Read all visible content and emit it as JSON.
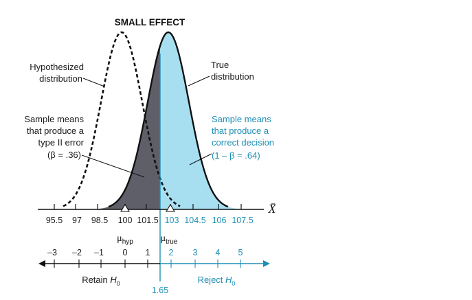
{
  "title": "SMALL EFFECT",
  "labels": {
    "hypothesized": [
      "Hypothesized",
      "distribution"
    ],
    "true_dist": [
      "True",
      "distribution"
    ],
    "type2": [
      "Sample means",
      "that produce a",
      "type II error",
      "(β = .36)"
    ],
    "correct": [
      "Sample means",
      "that produce a",
      "correct decision",
      "(1 – β = .64)"
    ]
  },
  "x_axis": {
    "symbol": "X̄",
    "ticks_black": [
      "95.5",
      "97",
      "98.5",
      "100",
      "101.5"
    ],
    "ticks_blue": [
      "103",
      "104.5",
      "106",
      "107.5"
    ]
  },
  "mu": {
    "hyp_base": "μ",
    "hyp_sub": "hyp",
    "true_base": "μ",
    "true_sub": "true"
  },
  "z_axis": {
    "ticks_black": [
      "–3",
      "–2",
      "–1",
      "0",
      "1"
    ],
    "ticks_blue": [
      "2",
      "3",
      "4",
      "5"
    ],
    "critical": "1.65",
    "retain_text": "Retain ",
    "reject_text": "Reject ",
    "h_letter": "H",
    "h_sub": "0"
  },
  "colors": {
    "beta_fill": "#5f5f6a",
    "power_fill": "#a7dff0",
    "blue_text": "#1f8fb3",
    "curve": "#111111"
  }
}
